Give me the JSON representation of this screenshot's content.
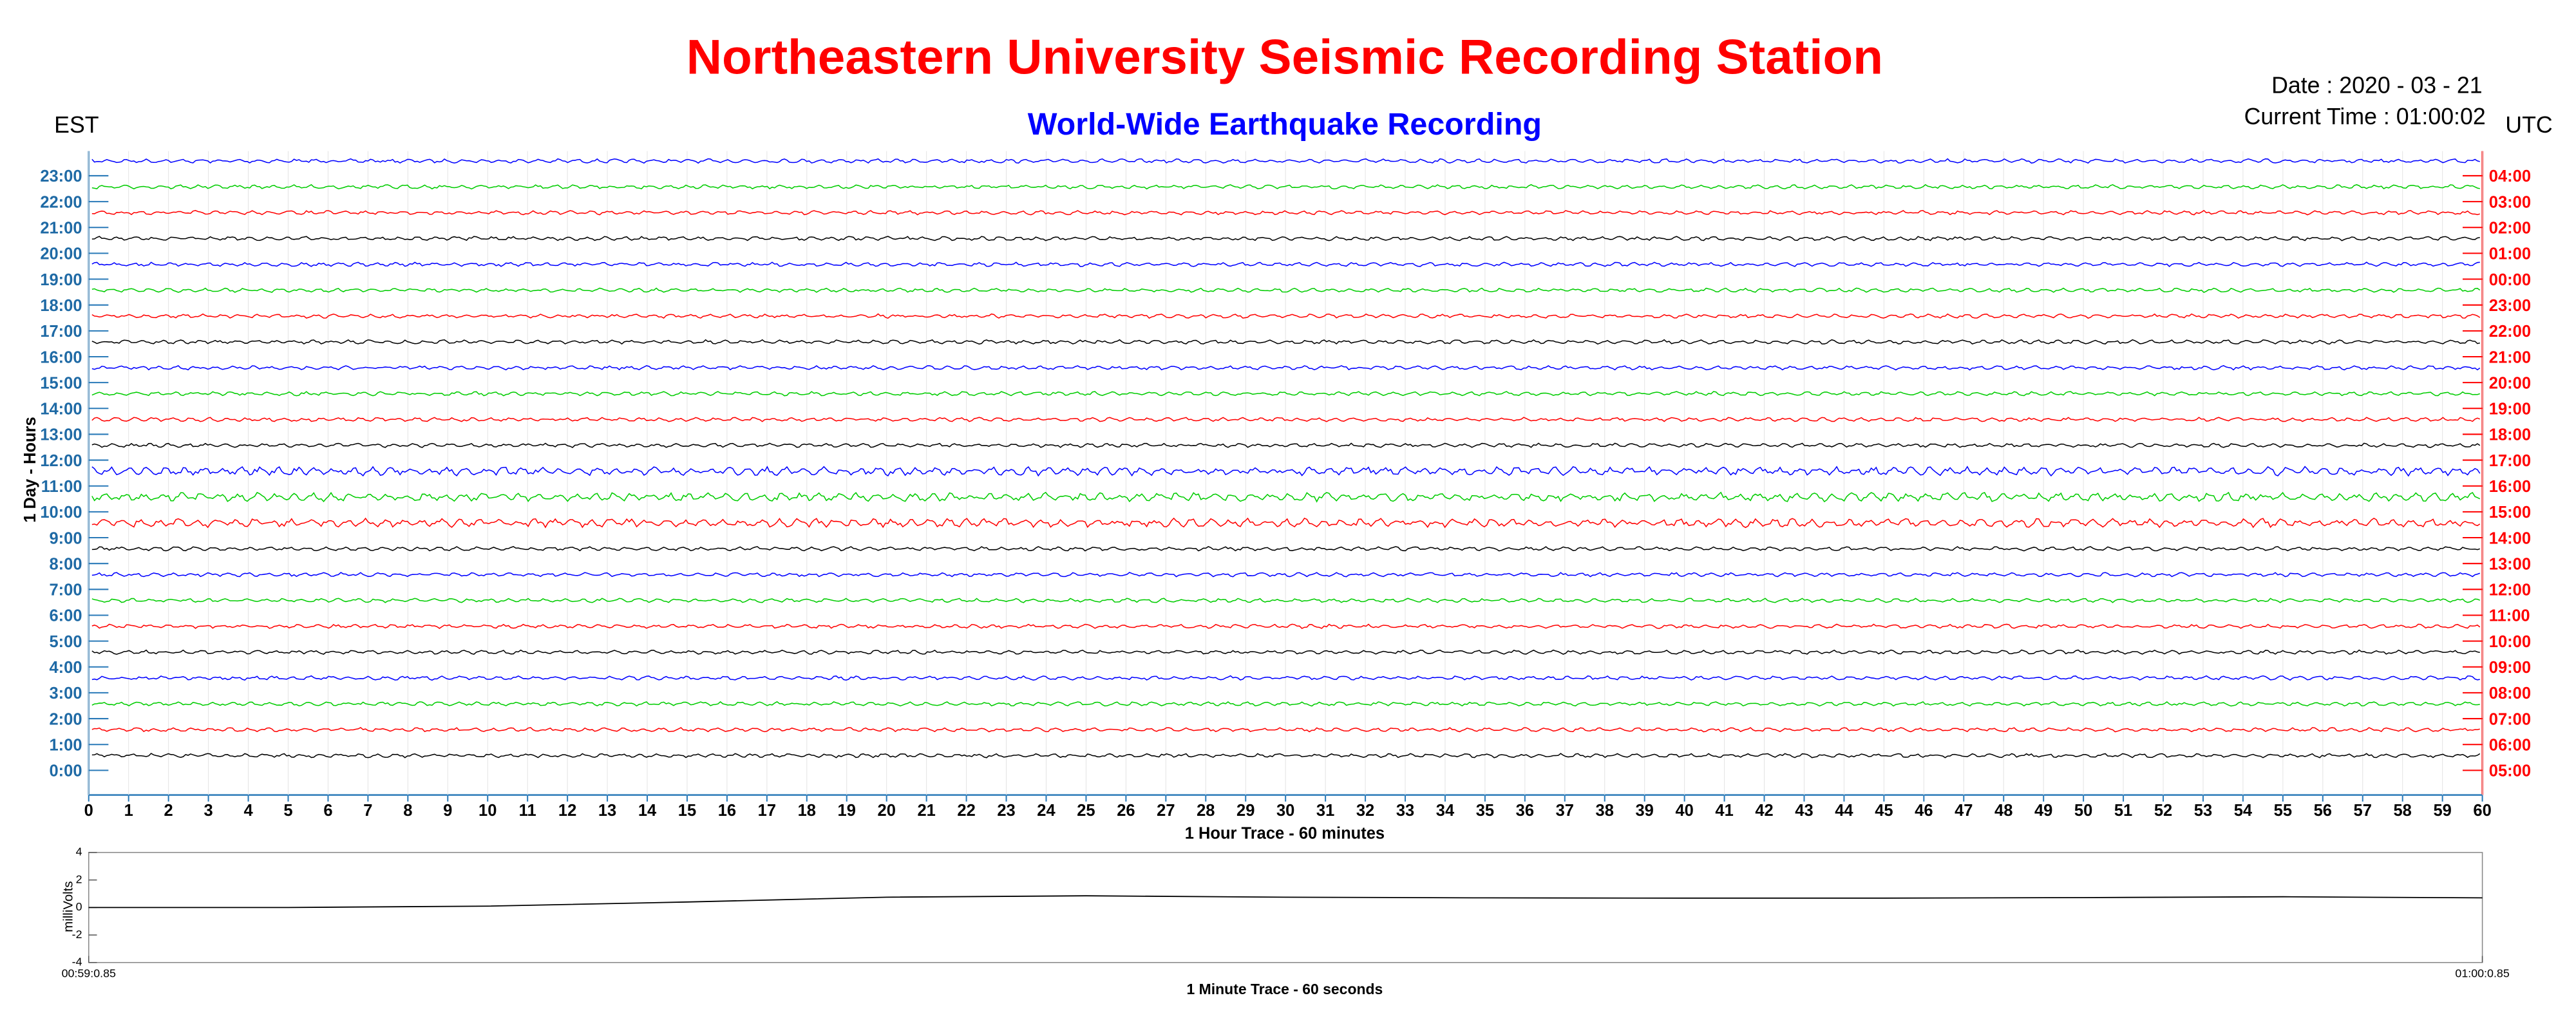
{
  "title": "Northeastern University Seismic Recording Station",
  "subtitle": "World-Wide Earthquake Recording",
  "date_label": "Date : 2020 - 03 - 21",
  "time_label": "Current Time : 01:00:02",
  "chart_data": [
    {
      "type": "helicorder",
      "left_axis_label": "EST",
      "right_axis_label": "UTC",
      "ylabel": "1 Day - Hours",
      "xlabel": "1 Hour Trace - 60 minutes",
      "categories": [
        "23:00",
        "22:00",
        "21:00",
        "20:00",
        "19:00",
        "18:00",
        "17:00",
        "16:00",
        "15:00",
        "14:00",
        "13:00",
        "12:00",
        "11:00",
        "10:00",
        "9:00",
        "8:00",
        "7:00",
        "6:00",
        "5:00",
        "4:00",
        "3:00",
        "2:00",
        "1:00",
        "0:00"
      ],
      "categories_utc": [
        "04:00",
        "03:00",
        "02:00",
        "01:00",
        "00:00",
        "23:00",
        "22:00",
        "21:00",
        "20:00",
        "19:00",
        "18:00",
        "17:00",
        "16:00",
        "15:00",
        "14:00",
        "13:00",
        "12:00",
        "11:00",
        "10:00",
        "09:00",
        "08:00",
        "07:00",
        "06:00",
        "05:00"
      ],
      "color_cycle": [
        "#0000ff",
        "#00cc00",
        "#ff0000",
        "#000000"
      ],
      "xlim": [
        0,
        60
      ],
      "xticks": [
        0,
        1,
        2,
        3,
        4,
        5,
        6,
        7,
        8,
        9,
        10,
        11,
        12,
        13,
        14,
        15,
        16,
        17,
        18,
        19,
        20,
        21,
        22,
        23,
        24,
        25,
        26,
        27,
        28,
        29,
        30,
        31,
        32,
        33,
        34,
        35,
        36,
        37,
        38,
        39,
        40,
        41,
        42,
        43,
        44,
        45,
        46,
        47,
        48,
        49,
        50,
        51,
        52,
        53,
        54,
        55,
        56,
        57,
        58,
        59,
        60
      ]
    },
    {
      "type": "line",
      "ylabel": "milliVolts",
      "xlabel": "1 Minute Trace  - 60 seconds",
      "xlim": [
        0,
        60
      ],
      "xticks": [
        {
          "value": 0,
          "label": "00:59:0.85"
        },
        {
          "value": 60,
          "label": "01:00:0.85"
        }
      ],
      "ylim": [
        -4,
        4
      ],
      "yticks": [
        4,
        2,
        0,
        -2,
        -4
      ],
      "x": [
        0,
        5,
        10,
        15,
        20,
        25,
        30,
        35,
        40,
        45,
        50,
        55,
        60
      ],
      "series": [
        {
          "name": "trace",
          "color": "#000000",
          "values": [
            0,
            0,
            0.1,
            0.4,
            0.75,
            0.85,
            0.75,
            0.7,
            0.68,
            0.68,
            0.72,
            0.78,
            0.7
          ]
        }
      ]
    }
  ]
}
